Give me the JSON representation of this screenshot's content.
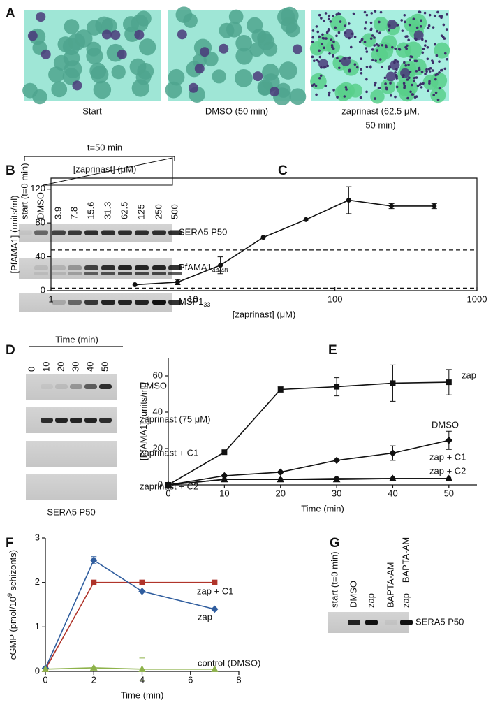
{
  "panel_letters": [
    "A",
    "B",
    "C",
    "D",
    "E",
    "F",
    "G"
  ],
  "panel_a": {
    "captions": [
      "Start",
      "DMSO (50 min)",
      "zaprinast (62.5 μM,",
      "50 min)"
    ]
  },
  "panel_b": {
    "time_label": "t=50 min",
    "conc_label": "[zaprinast] (μM)",
    "lanes": [
      "start (t=0 min)",
      "DMSO",
      "3.9",
      "7.8",
      "15.6",
      "31.3",
      "62.5",
      "125",
      "250",
      "500"
    ],
    "blots": [
      {
        "label": "SERA5 P50"
      },
      {
        "label": "PfAMA1",
        "sub": "44/48"
      },
      {
        "label": "MSP1",
        "sub": "33"
      }
    ]
  },
  "panel_d": {
    "axis_label": "Time (min)",
    "lanes": [
      "0",
      "10",
      "20",
      "30",
      "40",
      "50"
    ],
    "blots": [
      "DMSO",
      "zaprinast (75 μM)",
      "zaprinast + C1",
      "zaprinast + C2"
    ],
    "caption": "SERA5 P50"
  },
  "panel_g": {
    "lanes": [
      "start (t=0 min)",
      "DMSO",
      "zap",
      "BAPTA-AM",
      "zap + BAPTA-AM"
    ],
    "blot": "SERA5 P50"
  },
  "chart_data": [
    {
      "type": "line",
      "log_x": true,
      "xlabel": "[zaprinast] (μM)",
      "ylabel": {
        "text": "[PfAMA1] (units/ml)"
      },
      "x": [
        3.9,
        7.8,
        15.6,
        31.3,
        62.5,
        125,
        250,
        500
      ],
      "values": [
        7,
        10,
        30,
        63,
        84,
        107,
        100,
        100
      ],
      "errors": [
        null,
        3,
        10,
        null,
        null,
        16,
        3,
        3
      ],
      "color": "#111111",
      "marker": "circle",
      "hlines": [
        48,
        3
      ],
      "xlim": [
        1,
        1000
      ],
      "xticks": [
        1,
        10,
        100,
        1000
      ],
      "ylim": [
        0,
        133
      ],
      "yticks": [
        0,
        40,
        80,
        120
      ]
    },
    {
      "type": "line",
      "xlabel": "Time (min)",
      "ylabel": {
        "text": "[PfAMA1] (units/ml)"
      },
      "x": [
        0,
        10,
        20,
        30,
        40,
        50
      ],
      "series": [
        {
          "name": "zap",
          "color": "#111111",
          "marker": "square",
          "values": [
            0,
            18,
            52.5,
            54,
            56,
            56.5
          ],
          "errors": [
            null,
            null,
            1.5,
            5,
            10,
            7
          ]
        },
        {
          "name": "DMSO",
          "color": "#111111",
          "marker": "diamond",
          "values": [
            0,
            5,
            7,
            13.5,
            17.5,
            24.5
          ],
          "errors": [
            null,
            null,
            null,
            null,
            4,
            5
          ]
        },
        {
          "name": "zap + C1",
          "color": "#111111",
          "marker": "circle",
          "values": [
            0,
            3,
            3,
            3.5,
            3.5,
            3.5
          ],
          "errors": [
            null,
            null,
            null,
            null,
            null,
            null
          ]
        },
        {
          "name": "zap + C2",
          "color": "#111111",
          "marker": "triangle",
          "values": [
            0,
            3,
            3,
            3,
            3.5,
            3.5
          ],
          "errors": [
            null,
            null,
            null,
            null,
            null,
            null
          ]
        }
      ],
      "xlim": [
        0,
        55
      ],
      "xticks": [
        0,
        10,
        20,
        30,
        40,
        50
      ],
      "ylim": [
        0,
        70
      ],
      "yticks": [
        0,
        20,
        40,
        60
      ]
    },
    {
      "type": "line",
      "xlabel": "Time (min)",
      "ylabel": {
        "text": "cGMP (pmol/10",
        "sup": "9",
        "tail": " schizonts)"
      },
      "x": [
        0,
        2,
        4,
        7
      ],
      "series": [
        {
          "name": "zap + C1",
          "color": "#b0342a",
          "marker": "square",
          "values": [
            0.05,
            2,
            2,
            2
          ],
          "errors": [
            null,
            null,
            null,
            null
          ]
        },
        {
          "name": "zap",
          "color": "#2f5d9e",
          "marker": "diamond",
          "values": [
            0.07,
            2.5,
            1.8,
            1.4
          ],
          "errors": [
            null,
            0.08,
            null,
            null
          ]
        },
        {
          "name": "control (DMSO)",
          "color": "#8db24a",
          "marker": "triangle",
          "values": [
            0.05,
            0.08,
            0.05,
            0.05
          ],
          "errors": [
            null,
            null,
            0.25,
            null
          ]
        }
      ],
      "xlim": [
        0,
        8
      ],
      "xticks": [
        0,
        2,
        4,
        6,
        8
      ],
      "ylim": [
        0,
        3
      ],
      "yticks": [
        0,
        1,
        2,
        3
      ]
    }
  ]
}
